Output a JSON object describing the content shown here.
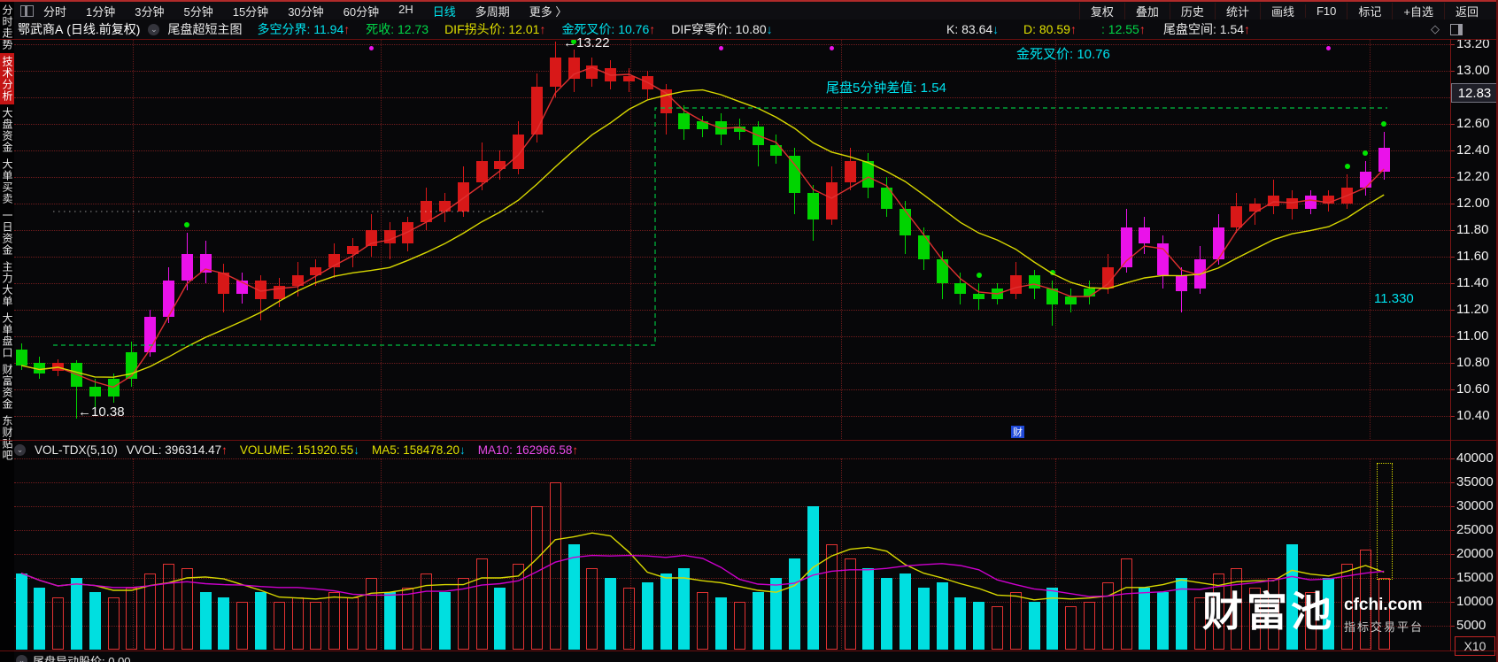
{
  "top_menu": {
    "corner_icon": "window-layout-icon",
    "items": [
      "分时",
      "1分钟",
      "3分钟",
      "5分钟",
      "15分钟",
      "30分钟",
      "60分钟",
      "2H",
      "日线",
      "多周期",
      "更多 〉"
    ],
    "active_item": "日线",
    "right_items": [
      "复权",
      "叠加",
      "历史",
      "统计",
      "画线",
      "F10",
      "标记",
      "+自选",
      "返回"
    ]
  },
  "sidebar": {
    "items": [
      {
        "label": "分时走势",
        "active": false
      },
      {
        "label": "技术分析",
        "active": true
      },
      {
        "label": "大盘资金",
        "active": false
      },
      {
        "label": "大单买卖",
        "active": false
      },
      {
        "label": "一日资金",
        "active": false
      },
      {
        "label": "主力大单",
        "active": false
      },
      {
        "label": "大单盘口",
        "active": false
      },
      {
        "label": "财富资金",
        "active": false
      },
      {
        "label": "东财贴吧",
        "active": false
      }
    ]
  },
  "title_bar": {
    "stock_name": "鄂武商A",
    "period_label": "(日线.前复权)",
    "indicator_toggle_icon": "chevron-circle-icon",
    "indicator_name": "尾盘超短主图",
    "fields": [
      {
        "label": "多空分界",
        "value": "11.94",
        "arrow": "↑",
        "color": "cyan"
      },
      {
        "label": "死收",
        "value": "12.73",
        "arrow": "",
        "color": "green"
      },
      {
        "label": "DIF拐头价",
        "value": "12.01",
        "arrow": "↑",
        "color": "yellow"
      },
      {
        "label": "金死叉价",
        "value": "10.76",
        "arrow": "↑",
        "color": "cyan"
      },
      {
        "label": "DIF穿零价",
        "value": "10.80",
        "arrow": "↓",
        "color": "white"
      }
    ],
    "right_fields": [
      {
        "label": "K",
        "value": "83.64",
        "arrow": "↓",
        "color": "white"
      },
      {
        "label": "D",
        "value": "80.59",
        "arrow": "↑",
        "color": "yellow"
      },
      {
        "label": "",
        "value": "12.55",
        "arrow": "↑",
        "color": "green"
      },
      {
        "label": "尾盘空间",
        "value": "1.54",
        "arrow": "↑",
        "color": "white"
      }
    ],
    "corner_icons": [
      "diamond-icon",
      "split-window-icon"
    ]
  },
  "chart_data": {
    "type": "candlestick",
    "title": "鄂武商A 日线 前复权 尾盘超短主图",
    "price_axis": {
      "labels": [
        "13.20",
        "13.00",
        "12.80",
        "12.60",
        "12.40",
        "12.20",
        "12.00",
        "11.80",
        "11.60",
        "11.40",
        "11.20",
        "11.00",
        "10.80",
        "10.60",
        "10.40"
      ],
      "values": [
        13.2,
        13.0,
        12.8,
        12.6,
        12.4,
        12.2,
        12.0,
        11.8,
        11.6,
        11.4,
        11.2,
        11.0,
        10.8,
        10.6,
        10.4
      ],
      "current_price": "12.83"
    },
    "annotations": {
      "high_label": "←13.22",
      "low_label": "←10.38",
      "golden_cross_label": "金死叉价: 10.76",
      "tail_diff_label": "尾盘5分钟差值: 1.54",
      "price_marker": "11.330",
      "event_badge": "财"
    },
    "candles": [
      [
        10.9,
        10.95,
        10.75,
        10.78,
        "g",
        0
      ],
      [
        10.8,
        10.85,
        10.68,
        10.72,
        "g",
        0
      ],
      [
        10.74,
        10.83,
        10.7,
        10.8,
        "r",
        0
      ],
      [
        10.8,
        10.82,
        10.38,
        10.62,
        "g",
        0
      ],
      [
        10.62,
        10.68,
        10.45,
        10.55,
        "g",
        0
      ],
      [
        10.55,
        10.72,
        10.5,
        10.68,
        "g",
        0
      ],
      [
        10.68,
        10.96,
        10.62,
        10.88,
        "g",
        0
      ],
      [
        10.88,
        11.2,
        10.85,
        11.15,
        "m",
        0
      ],
      [
        11.15,
        11.52,
        11.1,
        11.42,
        "m",
        0
      ],
      [
        11.42,
        11.78,
        11.35,
        11.62,
        "m",
        1
      ],
      [
        11.62,
        11.72,
        11.4,
        11.48,
        "m",
        0
      ],
      [
        11.48,
        11.55,
        11.18,
        11.32,
        "r",
        0
      ],
      [
        11.32,
        11.48,
        11.25,
        11.42,
        "m",
        0
      ],
      [
        11.42,
        11.46,
        11.12,
        11.28,
        "r",
        0
      ],
      [
        11.28,
        11.44,
        11.22,
        11.38,
        "r",
        0
      ],
      [
        11.38,
        11.56,
        11.3,
        11.46,
        "r",
        0
      ],
      [
        11.46,
        11.58,
        11.38,
        11.52,
        "r",
        0
      ],
      [
        11.52,
        11.7,
        11.44,
        11.62,
        "r",
        0
      ],
      [
        11.62,
        11.74,
        11.52,
        11.68,
        "r",
        0
      ],
      [
        11.68,
        11.92,
        11.6,
        11.8,
        "r",
        0
      ],
      [
        11.8,
        11.86,
        11.58,
        11.7,
        "r",
        0
      ],
      [
        11.7,
        11.9,
        11.64,
        11.86,
        "r",
        0
      ],
      [
        11.86,
        12.12,
        11.8,
        12.02,
        "r",
        0
      ],
      [
        12.02,
        12.08,
        11.86,
        11.94,
        "r",
        0
      ],
      [
        11.94,
        12.28,
        11.9,
        12.16,
        "r",
        0
      ],
      [
        12.16,
        12.46,
        12.1,
        12.32,
        "r",
        0
      ],
      [
        12.32,
        12.4,
        12.18,
        12.26,
        "r",
        0
      ],
      [
        12.26,
        12.62,
        12.22,
        12.52,
        "r",
        0
      ],
      [
        12.52,
        12.98,
        12.46,
        12.88,
        "r",
        0
      ],
      [
        12.88,
        13.22,
        12.8,
        13.1,
        "r",
        0
      ],
      [
        13.1,
        13.16,
        12.84,
        12.94,
        "r",
        1
      ],
      [
        12.94,
        13.1,
        12.88,
        13.04,
        "r",
        0
      ],
      [
        13.02,
        13.08,
        12.86,
        12.92,
        "r",
        0
      ],
      [
        12.92,
        13.02,
        12.84,
        12.96,
        "r",
        0
      ],
      [
        12.96,
        13.0,
        12.78,
        12.86,
        "r",
        0
      ],
      [
        12.86,
        12.9,
        12.52,
        12.68,
        "r",
        0
      ],
      [
        12.68,
        12.74,
        12.48,
        12.56,
        "g",
        0
      ],
      [
        12.56,
        12.66,
        12.5,
        12.62,
        "g",
        0
      ],
      [
        12.62,
        12.68,
        12.44,
        12.52,
        "g",
        0
      ],
      [
        12.54,
        12.64,
        12.48,
        12.58,
        "g",
        0
      ],
      [
        12.58,
        12.62,
        12.28,
        12.44,
        "g",
        0
      ],
      [
        12.44,
        12.52,
        12.3,
        12.36,
        "g",
        0
      ],
      [
        12.36,
        12.42,
        11.92,
        12.08,
        "g",
        0
      ],
      [
        12.08,
        12.14,
        11.72,
        11.88,
        "g",
        0
      ],
      [
        11.88,
        12.28,
        11.84,
        12.16,
        "r",
        0
      ],
      [
        12.16,
        12.42,
        12.1,
        12.32,
        "r",
        0
      ],
      [
        12.32,
        12.38,
        12.04,
        12.12,
        "g",
        0
      ],
      [
        12.12,
        12.2,
        11.9,
        11.96,
        "g",
        0
      ],
      [
        11.96,
        12.02,
        11.62,
        11.76,
        "g",
        0
      ],
      [
        11.76,
        11.82,
        11.5,
        11.58,
        "g",
        0
      ],
      [
        11.58,
        11.64,
        11.28,
        11.4,
        "g",
        0
      ],
      [
        11.4,
        11.48,
        11.24,
        11.32,
        "g",
        0
      ],
      [
        11.32,
        11.4,
        11.2,
        11.28,
        "g",
        1
      ],
      [
        11.28,
        11.4,
        11.24,
        11.36,
        "g",
        0
      ],
      [
        11.32,
        11.56,
        11.28,
        11.46,
        "r",
        0
      ],
      [
        11.46,
        11.5,
        11.28,
        11.36,
        "g",
        0
      ],
      [
        11.36,
        11.42,
        11.08,
        11.24,
        "g",
        1
      ],
      [
        11.24,
        11.36,
        11.18,
        11.3,
        "g",
        0
      ],
      [
        11.3,
        11.42,
        11.24,
        11.36,
        "g",
        0
      ],
      [
        11.36,
        11.62,
        11.32,
        11.52,
        "r",
        0
      ],
      [
        11.52,
        11.96,
        11.48,
        11.82,
        "m",
        0
      ],
      [
        11.82,
        11.9,
        11.62,
        11.7,
        "m",
        0
      ],
      [
        11.7,
        11.76,
        11.36,
        11.46,
        "m",
        0
      ],
      [
        11.46,
        11.52,
        11.18,
        11.34,
        "m",
        0
      ],
      [
        11.36,
        11.68,
        11.32,
        11.58,
        "m",
        0
      ],
      [
        11.58,
        11.92,
        11.54,
        11.82,
        "m",
        0
      ],
      [
        11.82,
        12.08,
        11.78,
        11.98,
        "r",
        0
      ],
      [
        11.94,
        12.04,
        11.84,
        12.0,
        "r",
        0
      ],
      [
        11.98,
        12.18,
        11.92,
        12.06,
        "r",
        0
      ],
      [
        12.04,
        12.1,
        11.88,
        11.96,
        "r",
        0
      ],
      [
        11.96,
        12.1,
        11.92,
        12.06,
        "m",
        0
      ],
      [
        12.06,
        12.1,
        11.94,
        12.0,
        "r",
        0
      ],
      [
        12.0,
        12.22,
        11.96,
        12.12,
        "r",
        1
      ],
      [
        12.12,
        12.32,
        12.06,
        12.24,
        "m",
        1
      ],
      [
        12.24,
        12.54,
        12.18,
        12.42,
        "m",
        1
      ]
    ],
    "signal_top_dots_at": [
      19,
      38,
      44,
      71
    ],
    "ma_lines": {
      "fast_color": "#e03030",
      "slow_color": "#d8d800",
      "fast_period": 3,
      "slow_period": 10
    }
  },
  "volume_pane": {
    "toggle_icon": "chevron-circle-icon",
    "indicator": "VOL-TDX(5,10)",
    "fields": [
      {
        "label": "VVOL",
        "value": "396314.47",
        "arrow": "↑",
        "color": "white"
      },
      {
        "label": "VOLUME",
        "value": "151920.55",
        "arrow": "↓",
        "color": "yellow"
      },
      {
        "label": "MA5",
        "value": "158478.20",
        "arrow": "↓",
        "color": "yellow"
      },
      {
        "label": "MA10",
        "value": "162966.58",
        "arrow": "↑",
        "color": "magenta"
      }
    ],
    "axis_labels": [
      "40000",
      "35000",
      "30000",
      "25000",
      "20000",
      "15000",
      "10000",
      "5000"
    ],
    "axis_values": [
      40000,
      35000,
      30000,
      25000,
      20000,
      15000,
      10000,
      5000
    ],
    "unit": "X10",
    "values": [
      16000,
      13000,
      11000,
      15000,
      12000,
      11000,
      13000,
      16000,
      18000,
      17000,
      12000,
      11000,
      10000,
      12000,
      10000,
      11000,
      10000,
      12000,
      11000,
      15000,
      12000,
      13000,
      16000,
      12000,
      15000,
      19000,
      13000,
      18000,
      30000,
      35000,
      22000,
      17000,
      15000,
      13000,
      14000,
      16000,
      17000,
      12000,
      11000,
      10000,
      12000,
      15000,
      19000,
      30000,
      22000,
      19000,
      17000,
      15000,
      16000,
      13000,
      14000,
      11000,
      10000,
      9000,
      12000,
      10000,
      13000,
      9000,
      10000,
      14000,
      19000,
      13000,
      12000,
      15000,
      11000,
      16000,
      17000,
      13000,
      15000,
      22000,
      12000,
      15000,
      18000,
      21000,
      15000
    ],
    "projection_box_top_value": 39000,
    "ma_lines": {
      "ma5_color": "#d8d800",
      "ma10_color": "#cc00cc"
    }
  },
  "watermark": {
    "brand": "财富池",
    "domain": "cfchi.com",
    "tagline": "指标交易平台"
  },
  "bottom_pane": {
    "toggle_icon": "chevron-circle-icon",
    "partial_text": "尾盘异动股价: 0.00"
  },
  "colors": {
    "accent_cyan": "#00e5ee",
    "up_arrow_red": "#ff3434",
    "down_arrow_cyan": "#00c8ee",
    "candle_red": "#d81818",
    "candle_green": "#00d400",
    "candle_magenta": "#ea12ea",
    "volume_cyan": "#00dfe0",
    "ma_yellow": "#d8d800",
    "ma_magenta": "#cc00cc",
    "grid_red": "#aa2222",
    "divider_red": "#6a0f0f",
    "active_tab_red": "#c41414",
    "value_green": "#00d848",
    "value_yellow": "#e0e000"
  }
}
